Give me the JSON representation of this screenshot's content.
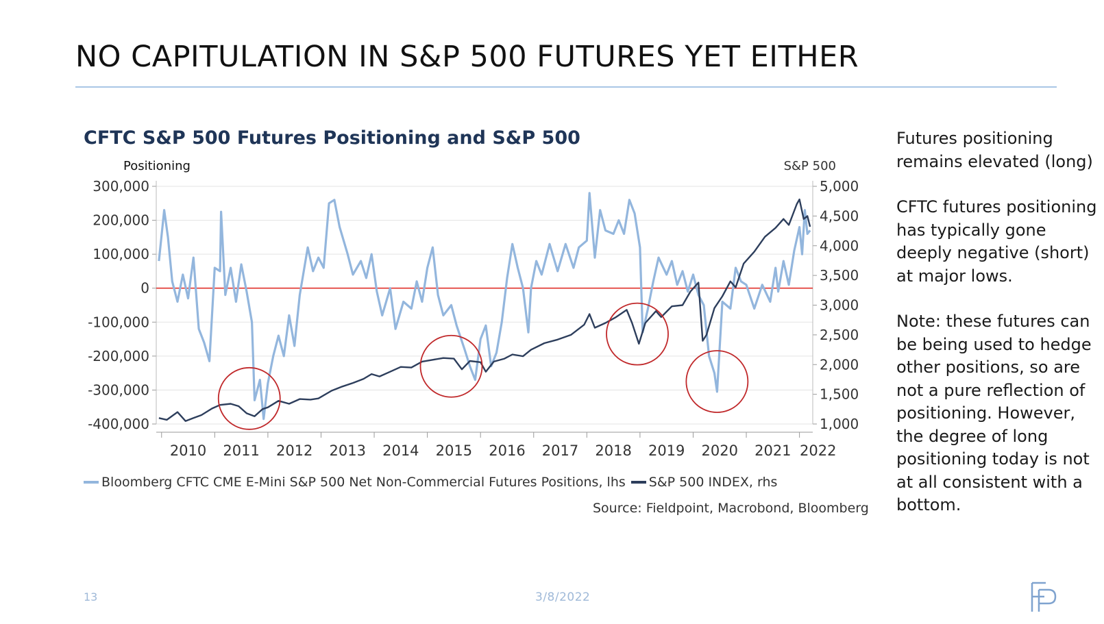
{
  "slide": {
    "title": "NO CAPITULATION IN S&P 500 FUTURES YET EITHER",
    "page_number": "13",
    "date": "3/8/2022"
  },
  "side_text": {
    "p1": "Futures positioning remains elevated (long)",
    "p2": "CFTC futures positioning has typically gone deeply negative (short) at major lows.",
    "p3": "Note: these futures can be being used to hedge other positions, so are not a pure reflection of positioning.  However, the degree of long positioning today is not at all consistent with a bottom."
  },
  "chart_data": {
    "type": "line",
    "title": "CFTC S&P 500 Futures Positioning and S&P 500",
    "ylabel_left": "Positioning",
    "ylabel_right": "S&P 500",
    "source": "Source: Fieldpoint, Macrobond, Bloomberg",
    "ylim_left": [
      -400000,
      300000
    ],
    "ylim_right": [
      1000,
      5000
    ],
    "xlim": [
      2009.9,
      2022.25
    ],
    "left_ticks": [
      300000,
      200000,
      100000,
      0,
      -100000,
      -200000,
      -300000,
      -400000
    ],
    "left_tick_labels": [
      "300,000",
      "200,000",
      "100,000",
      "0",
      "-100,000",
      "-200,000",
      "-300,000",
      "-400,000"
    ],
    "right_ticks": [
      5000,
      4500,
      4000,
      3500,
      3000,
      2500,
      2000,
      1500,
      1000
    ],
    "right_tick_labels": [
      "5,000",
      "4,500",
      "4,000",
      "3,500",
      "3,000",
      "2,500",
      "2,000",
      "1,500",
      "1,000"
    ],
    "x_tick_labels": [
      "2010",
      "2011",
      "2012",
      "2013",
      "2014",
      "2015",
      "2016",
      "2017",
      "2018",
      "2019",
      "2020",
      "2021",
      "2022"
    ],
    "zero_line": 0,
    "grid": true,
    "legend_position": "bottom",
    "series": [
      {
        "name": "Bloomberg CFTC CME E-Mini S&P 500 Net Non-Commercial Futures Positions, lhs",
        "axis": "left",
        "color": "#93b6dd",
        "points": [
          [
            2009.95,
            80000
          ],
          [
            2010.05,
            230000
          ],
          [
            2010.12,
            150000
          ],
          [
            2010.2,
            20000
          ],
          [
            2010.3,
            -40000
          ],
          [
            2010.4,
            40000
          ],
          [
            2010.5,
            -30000
          ],
          [
            2010.6,
            90000
          ],
          [
            2010.7,
            -120000
          ],
          [
            2010.8,
            -160000
          ],
          [
            2010.9,
            -215000
          ],
          [
            2011.0,
            60000
          ],
          [
            2011.1,
            50000
          ],
          [
            2011.12,
            225000
          ],
          [
            2011.2,
            -20000
          ],
          [
            2011.3,
            60000
          ],
          [
            2011.4,
            -40000
          ],
          [
            2011.5,
            70000
          ],
          [
            2011.6,
            -10000
          ],
          [
            2011.7,
            -100000
          ],
          [
            2011.75,
            -330000
          ],
          [
            2011.85,
            -270000
          ],
          [
            2011.92,
            -385000
          ],
          [
            2012.0,
            -280000
          ],
          [
            2012.1,
            -200000
          ],
          [
            2012.2,
            -140000
          ],
          [
            2012.3,
            -200000
          ],
          [
            2012.4,
            -80000
          ],
          [
            2012.5,
            -170000
          ],
          [
            2012.6,
            -20000
          ],
          [
            2012.75,
            120000
          ],
          [
            2012.85,
            50000
          ],
          [
            2012.95,
            90000
          ],
          [
            2013.05,
            60000
          ],
          [
            2013.15,
            250000
          ],
          [
            2013.25,
            260000
          ],
          [
            2013.35,
            180000
          ],
          [
            2013.5,
            100000
          ],
          [
            2013.6,
            40000
          ],
          [
            2013.75,
            80000
          ],
          [
            2013.85,
            30000
          ],
          [
            2013.95,
            100000
          ],
          [
            2014.05,
            -10000
          ],
          [
            2014.15,
            -80000
          ],
          [
            2014.3,
            0
          ],
          [
            2014.4,
            -120000
          ],
          [
            2014.55,
            -40000
          ],
          [
            2014.7,
            -60000
          ],
          [
            2014.8,
            20000
          ],
          [
            2014.9,
            -40000
          ],
          [
            2015.0,
            60000
          ],
          [
            2015.1,
            120000
          ],
          [
            2015.2,
            -20000
          ],
          [
            2015.3,
            -80000
          ],
          [
            2015.45,
            -50000
          ],
          [
            2015.55,
            -110000
          ],
          [
            2015.7,
            -180000
          ],
          [
            2015.8,
            -230000
          ],
          [
            2015.9,
            -270000
          ],
          [
            2016.0,
            -150000
          ],
          [
            2016.1,
            -110000
          ],
          [
            2016.2,
            -230000
          ],
          [
            2016.3,
            -190000
          ],
          [
            2016.4,
            -100000
          ],
          [
            2016.5,
            30000
          ],
          [
            2016.6,
            130000
          ],
          [
            2016.7,
            60000
          ],
          [
            2016.8,
            0
          ],
          [
            2016.9,
            -130000
          ],
          [
            2016.95,
            0
          ],
          [
            2017.05,
            80000
          ],
          [
            2017.15,
            40000
          ],
          [
            2017.3,
            130000
          ],
          [
            2017.45,
            50000
          ],
          [
            2017.6,
            130000
          ],
          [
            2017.75,
            60000
          ],
          [
            2017.85,
            120000
          ],
          [
            2018.0,
            140000
          ],
          [
            2018.05,
            280000
          ],
          [
            2018.15,
            90000
          ],
          [
            2018.25,
            230000
          ],
          [
            2018.35,
            170000
          ],
          [
            2018.5,
            160000
          ],
          [
            2018.6,
            200000
          ],
          [
            2018.7,
            160000
          ],
          [
            2018.8,
            260000
          ],
          [
            2018.9,
            220000
          ],
          [
            2019.0,
            120000
          ],
          [
            2019.05,
            -130000
          ],
          [
            2019.15,
            -60000
          ],
          [
            2019.25,
            20000
          ],
          [
            2019.35,
            90000
          ],
          [
            2019.5,
            40000
          ],
          [
            2019.6,
            80000
          ],
          [
            2019.7,
            10000
          ],
          [
            2019.8,
            50000
          ],
          [
            2019.9,
            -10000
          ],
          [
            2020.0,
            40000
          ],
          [
            2020.1,
            -20000
          ],
          [
            2020.2,
            -50000
          ],
          [
            2020.3,
            -200000
          ],
          [
            2020.4,
            -250000
          ],
          [
            2020.45,
            -305000
          ],
          [
            2020.55,
            -40000
          ],
          [
            2020.7,
            -60000
          ],
          [
            2020.8,
            60000
          ],
          [
            2020.9,
            20000
          ],
          [
            2021.0,
            10000
          ],
          [
            2021.15,
            -60000
          ],
          [
            2021.3,
            10000
          ],
          [
            2021.45,
            -40000
          ],
          [
            2021.55,
            60000
          ],
          [
            2021.6,
            -10000
          ],
          [
            2021.7,
            80000
          ],
          [
            2021.8,
            10000
          ],
          [
            2021.9,
            110000
          ],
          [
            2022.0,
            180000
          ],
          [
            2022.05,
            100000
          ],
          [
            2022.1,
            230000
          ],
          [
            2022.15,
            160000
          ],
          [
            2022.2,
            170000
          ]
        ]
      },
      {
        "name": "S&P 500 INDEX, rhs",
        "axis": "right",
        "color": "#2d3e5c",
        "points": [
          [
            2009.95,
            1100
          ],
          [
            2010.1,
            1070
          ],
          [
            2010.3,
            1200
          ],
          [
            2010.45,
            1050
          ],
          [
            2010.6,
            1100
          ],
          [
            2010.75,
            1150
          ],
          [
            2010.95,
            1260
          ],
          [
            2011.1,
            1320
          ],
          [
            2011.3,
            1340
          ],
          [
            2011.45,
            1300
          ],
          [
            2011.6,
            1180
          ],
          [
            2011.75,
            1130
          ],
          [
            2011.9,
            1250
          ],
          [
            2012.0,
            1280
          ],
          [
            2012.2,
            1390
          ],
          [
            2012.4,
            1340
          ],
          [
            2012.6,
            1420
          ],
          [
            2012.8,
            1410
          ],
          [
            2012.95,
            1430
          ],
          [
            2013.2,
            1560
          ],
          [
            2013.4,
            1630
          ],
          [
            2013.6,
            1690
          ],
          [
            2013.8,
            1760
          ],
          [
            2013.95,
            1840
          ],
          [
            2014.1,
            1800
          ],
          [
            2014.3,
            1880
          ],
          [
            2014.5,
            1960
          ],
          [
            2014.7,
            1950
          ],
          [
            2014.9,
            2050
          ],
          [
            2015.1,
            2080
          ],
          [
            2015.3,
            2110
          ],
          [
            2015.5,
            2100
          ],
          [
            2015.65,
            1920
          ],
          [
            2015.8,
            2060
          ],
          [
            2016.0,
            2040
          ],
          [
            2016.1,
            1880
          ],
          [
            2016.25,
            2050
          ],
          [
            2016.45,
            2100
          ],
          [
            2016.6,
            2170
          ],
          [
            2016.8,
            2140
          ],
          [
            2016.95,
            2250
          ],
          [
            2017.2,
            2360
          ],
          [
            2017.45,
            2420
          ],
          [
            2017.7,
            2500
          ],
          [
            2017.95,
            2670
          ],
          [
            2018.05,
            2850
          ],
          [
            2018.15,
            2620
          ],
          [
            2018.35,
            2700
          ],
          [
            2018.55,
            2800
          ],
          [
            2018.75,
            2920
          ],
          [
            2018.85,
            2700
          ],
          [
            2018.98,
            2350
          ],
          [
            2019.1,
            2700
          ],
          [
            2019.3,
            2900
          ],
          [
            2019.4,
            2800
          ],
          [
            2019.6,
            2980
          ],
          [
            2019.8,
            3000
          ],
          [
            2019.95,
            3230
          ],
          [
            2020.1,
            3380
          ],
          [
            2020.18,
            2400
          ],
          [
            2020.25,
            2500
          ],
          [
            2020.4,
            2950
          ],
          [
            2020.55,
            3150
          ],
          [
            2020.7,
            3400
          ],
          [
            2020.8,
            3300
          ],
          [
            2020.95,
            3700
          ],
          [
            2021.15,
            3900
          ],
          [
            2021.35,
            4150
          ],
          [
            2021.55,
            4300
          ],
          [
            2021.7,
            4450
          ],
          [
            2021.8,
            4350
          ],
          [
            2021.95,
            4700
          ],
          [
            2022.0,
            4780
          ],
          [
            2022.08,
            4450
          ],
          [
            2022.15,
            4500
          ],
          [
            2022.2,
            4320
          ]
        ]
      }
    ],
    "annotations": [
      {
        "shape": "circle",
        "color": "#c0282a",
        "x": 2011.65,
        "y": -325000
      },
      {
        "shape": "circle",
        "color": "#c0282a",
        "x": 2015.45,
        "y": -230000
      },
      {
        "shape": "circle",
        "color": "#c0282a",
        "x": 2018.95,
        "y": -135000
      },
      {
        "shape": "circle",
        "color": "#c0282a",
        "x": 2020.45,
        "y": -275000
      }
    ],
    "zero_line_color": "#e0302a"
  },
  "icons": {
    "logo": "fieldpoint-fp-logo"
  }
}
